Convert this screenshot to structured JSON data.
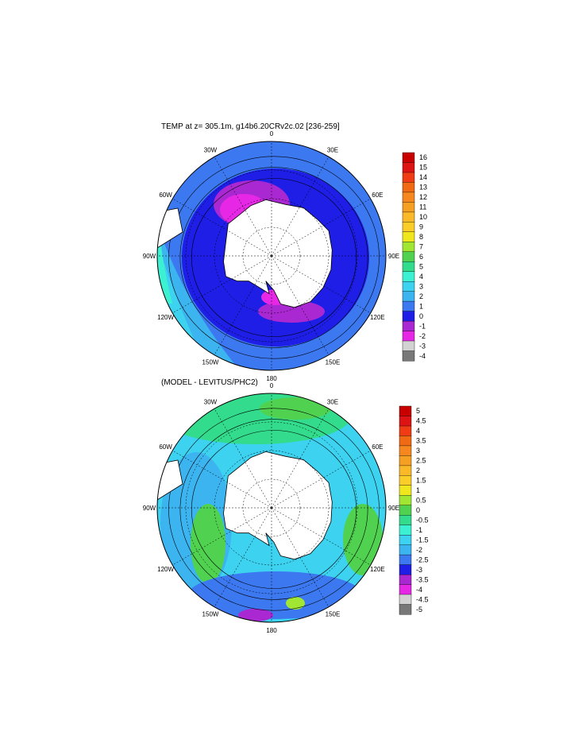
{
  "chart_data": [
    {
      "type": "heatmap",
      "title": "TEMP at z= 305.1m, g14b6.20CRv2c.02 [236-259]",
      "projection": "south polar stereographic",
      "meridian_labels": [
        "0",
        "30E",
        "60E",
        "90E",
        "120E",
        "150E",
        "180",
        "150W",
        "120W",
        "90W",
        "60W",
        "30W"
      ],
      "colorbar": {
        "labels": [
          "16",
          "15",
          "14",
          "13",
          "12",
          "11",
          "10",
          "9",
          "8",
          "7",
          "6",
          "5",
          "4",
          "3",
          "2",
          "1",
          "0",
          "-1",
          "-2",
          "-3",
          "-4"
        ],
        "colors": [
          "#c80000",
          "#dc1414",
          "#f03c14",
          "#f06a14",
          "#f5871e",
          "#f5a023",
          "#fab928",
          "#facd28",
          "#f0e61e",
          "#a0e632",
          "#50d250",
          "#32dc8c",
          "#3cf0d2",
          "#3cd2f0",
          "#3cb4f0",
          "#3c78f0",
          "#1e1ee6",
          "#aa28d2",
          "#e628e6",
          "#d2d2d2",
          "#787878"
        ]
      },
      "colors": {
        "deep_blue": "#1e1ee6",
        "mid_blue": "#3c78f0",
        "purple": "#aa28d2",
        "magenta": "#e628e6",
        "cyan": "#3cd2f0"
      }
    },
    {
      "type": "heatmap",
      "title": "(MODEL - LEVITUS/PHC2)",
      "projection": "south polar stereographic",
      "meridian_labels": [
        "0",
        "30E",
        "60E",
        "90E",
        "120E",
        "150E",
        "180",
        "150W",
        "120W",
        "90W",
        "60W",
        "30W"
      ],
      "colorbar": {
        "labels": [
          "5",
          "4.5",
          "4",
          "3.5",
          "3",
          "2.5",
          "2",
          "1.5",
          "1",
          "0.5",
          "0",
          "-0.5",
          "-1",
          "-1.5",
          "-2",
          "-2.5",
          "-3",
          "-3.5",
          "-4",
          "-4.5",
          "-5"
        ],
        "colors": [
          "#c80000",
          "#dc1414",
          "#f03c14",
          "#f06a14",
          "#f5871e",
          "#f5a023",
          "#fab928",
          "#facd28",
          "#f0e61e",
          "#a0e632",
          "#50d250",
          "#32dc8c",
          "#3cf0d2",
          "#3cd2f0",
          "#3cb4f0",
          "#3c78f0",
          "#1e1ee6",
          "#aa28d2",
          "#e628e6",
          "#d2d2d2",
          "#787878"
        ]
      },
      "colors": {
        "green": "#50d250",
        "teal": "#32dc8c",
        "cyan": "#3cd2f0",
        "blue": "#3c78f0"
      }
    }
  ]
}
